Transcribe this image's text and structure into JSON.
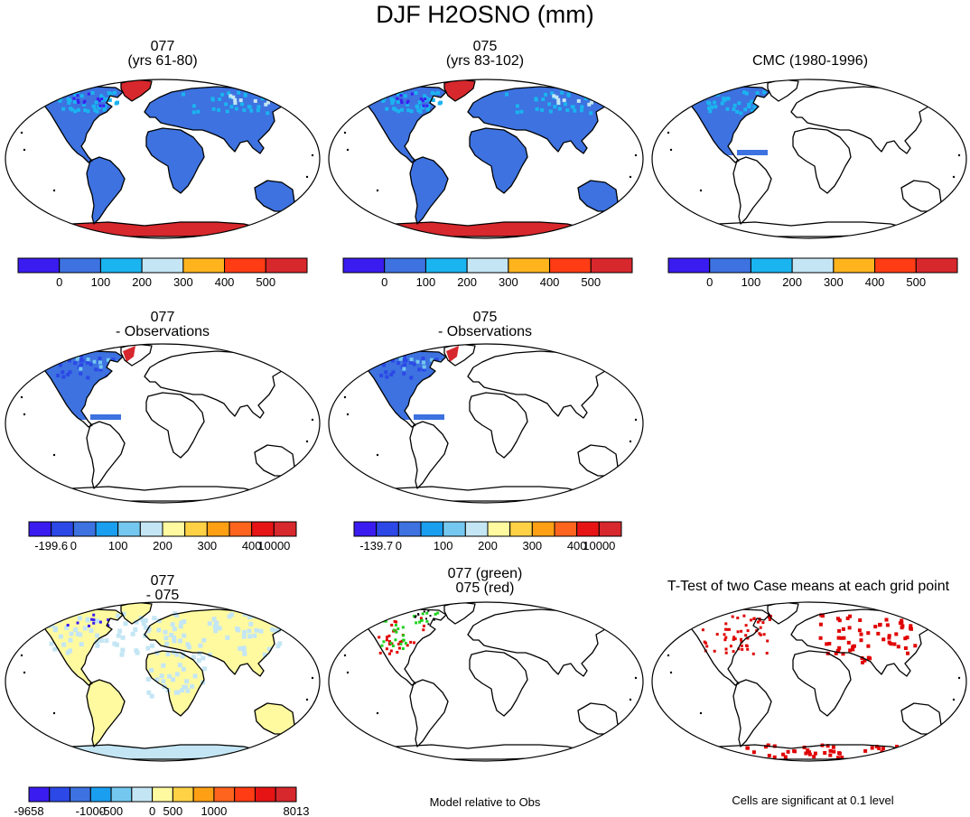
{
  "figure": {
    "title": "DJF H2OSNO (mm)"
  },
  "colors": {
    "snow7": [
      "#3a1cf0",
      "#3d72e0",
      "#1ab4f0",
      "#c4e6f4",
      "#ffb41e",
      "#ff3c14",
      "#d7282d"
    ],
    "diff11": [
      "#3a1cf0",
      "#2c48e6",
      "#3d72e0",
      "#1a9ef0",
      "#74c8f0",
      "#c4e6f4",
      "#fffaa0",
      "#ffd246",
      "#ffa014",
      "#ff641e",
      "#e61414",
      "#d7282d"
    ],
    "diff13": [
      "#3a1cf0",
      "#2c48e6",
      "#3d72e0",
      "#1a9ef0",
      "#74c8f0",
      "#c4e6f4",
      "#fffaa0",
      "#ffd246",
      "#ffa014",
      "#ff641e",
      "#ff3c14",
      "#e61414",
      "#d7282d"
    ],
    "fill_blue": "#3d72e0",
    "fill_red": "#d7282d",
    "fill_light": "#c4e6f4",
    "fill_yellow": "#fffaa0",
    "sig_red": "#e00000",
    "sig_green": "#1fd21f"
  },
  "panels": [
    {
      "id": "p1",
      "title": [
        "077",
        "(yrs 61-80)"
      ],
      "fill": "full-snow"
    },
    {
      "id": "p2",
      "title": [
        "075",
        "(yrs 83-102)"
      ],
      "fill": "full-snow"
    },
    {
      "id": "p3",
      "title": [
        "CMC (1980-1996)"
      ],
      "fill": "obs"
    },
    {
      "id": "p4",
      "title": [
        "077",
        "- Observations"
      ],
      "fill": "na-diff"
    },
    {
      "id": "p5",
      "title": [
        "075",
        "- Observations"
      ],
      "fill": "na-diff"
    },
    {
      "id": "p6",
      "title": [
        "077",
        "- 075"
      ],
      "fill": "model-diff"
    },
    {
      "id": "p7",
      "title": [
        "077 (green)",
        "075 (red)"
      ],
      "fill": "greenred"
    },
    {
      "id": "p8",
      "title": [
        "T-Test of two Case means at each grid point"
      ],
      "fill": "ttest"
    }
  ],
  "colorbars": [
    {
      "id": "cb1",
      "labels": [
        "0",
        "100",
        "200",
        "300",
        "400",
        "500"
      ]
    },
    {
      "id": "cb2",
      "labels": [
        "0",
        "100",
        "200",
        "300",
        "400",
        "500"
      ]
    },
    {
      "id": "cb3",
      "labels": [
        "0",
        "100",
        "200",
        "300",
        "400",
        "500"
      ]
    },
    {
      "id": "cb4",
      "labels": [
        "-199.6",
        "0",
        "100",
        "200",
        "300",
        "400",
        "10000"
      ]
    },
    {
      "id": "cb5",
      "labels": [
        "-139.7",
        "0",
        "100",
        "200",
        "300",
        "400",
        "10000"
      ]
    },
    {
      "id": "cb6",
      "labels": [
        "-9658",
        "-1000",
        "-500",
        "0",
        "500",
        "1000",
        "8013"
      ]
    }
  ],
  "notes": {
    "model_relative": "Model relative to Obs",
    "significance": "Cells are significant at 0.1 level"
  }
}
